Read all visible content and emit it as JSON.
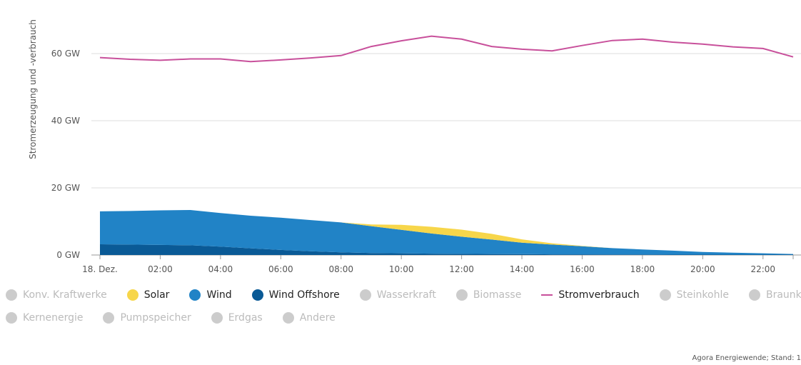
{
  "chart_data": {
    "type": "area",
    "ylabel": "Stromerzeugung und -verbrauch",
    "xlabel": "",
    "y_ticks": [
      "0 GW",
      "20 GW",
      "40 GW",
      "60 GW"
    ],
    "y_tick_values": [
      0,
      20,
      40,
      60
    ],
    "ylim": [
      0,
      70
    ],
    "x_ticks": [
      "18. Dez.",
      "02:00",
      "04:00",
      "06:00",
      "08:00",
      "10:00",
      "12:00",
      "14:00",
      "16:00",
      "18:00",
      "20:00",
      "22:00"
    ],
    "x_tick_hours": [
      0,
      2,
      4,
      6,
      8,
      10,
      12,
      14,
      16,
      18,
      20,
      22
    ],
    "x_hours": [
      0,
      1,
      2,
      3,
      4,
      5,
      6,
      7,
      8,
      9,
      10,
      11,
      12,
      13,
      14,
      15,
      16,
      17,
      18,
      19,
      20,
      21,
      22,
      23
    ],
    "xlim": [
      0,
      23
    ],
    "grid": true,
    "stack_order": [
      "Wind Offshore",
      "Wind",
      "Solar"
    ],
    "series": [
      {
        "name": "Wind Offshore",
        "type": "area",
        "color": "#0a5a96",
        "values": [
          3.2,
          3.1,
          3.0,
          2.9,
          2.5,
          2.0,
          1.5,
          1.1,
          0.8,
          0.6,
          0.5,
          0.4,
          0.35,
          0.3,
          0.25,
          0.2,
          0.2,
          0.15,
          0.15,
          0.1,
          0.1,
          0.1,
          0.1,
          0.1
        ]
      },
      {
        "name": "Wind",
        "type": "area",
        "color": "#2183c6",
        "values": [
          9.8,
          10.0,
          10.3,
          10.5,
          10.0,
          9.7,
          9.6,
          9.3,
          8.9,
          8.0,
          7.0,
          6.0,
          5.1,
          4.3,
          3.4,
          2.9,
          2.4,
          1.9,
          1.5,
          1.2,
          0.8,
          0.6,
          0.4,
          0.2
        ]
      },
      {
        "name": "Solar",
        "type": "area",
        "color": "#f7d64a",
        "values": [
          0,
          0,
          0,
          0,
          0,
          0,
          0,
          0,
          0,
          0.5,
          1.5,
          2.0,
          2.1,
          1.7,
          1.0,
          0.4,
          0.1,
          0,
          0,
          0,
          0,
          0,
          0,
          0
        ]
      },
      {
        "name": "Stromverbrauch",
        "type": "line",
        "color": "#c8509b",
        "values": [
          58.8,
          58.3,
          58.0,
          58.4,
          58.4,
          57.6,
          58.1,
          58.7,
          59.4,
          62.1,
          63.8,
          65.2,
          64.3,
          62.1,
          61.3,
          60.8,
          62.4,
          63.9,
          64.3,
          63.4,
          62.8,
          62.0,
          61.5,
          59.0
        ]
      }
    ],
    "legend_placement": "bottom",
    "legend_row1": [
      {
        "label": "Konv. Kraftwerke",
        "color": "#cccccc",
        "active": false,
        "kind": "dot"
      },
      {
        "label": "Solar",
        "color": "#f7d64a",
        "active": true,
        "kind": "dot"
      },
      {
        "label": "Wind",
        "color": "#2183c6",
        "active": true,
        "kind": "dot"
      },
      {
        "label": "Wind Offshore",
        "color": "#0a5a96",
        "active": true,
        "kind": "dot"
      },
      {
        "label": "Wasserkraft",
        "color": "#cccccc",
        "active": false,
        "kind": "dot"
      },
      {
        "label": "Biomasse",
        "color": "#cccccc",
        "active": false,
        "kind": "dot"
      },
      {
        "label": "Stromverbrauch",
        "color": "#c8509b",
        "active": true,
        "kind": "line"
      },
      {
        "label": "Steinkohle",
        "color": "#cccccc",
        "active": false,
        "kind": "dot"
      },
      {
        "label": "Braunkohle",
        "color": "#cccccc",
        "active": false,
        "kind": "dot"
      }
    ],
    "legend_row2": [
      {
        "label": "Kernenergie",
        "color": "#cccccc",
        "active": false,
        "kind": "dot"
      },
      {
        "label": "Pumpspeicher",
        "color": "#cccccc",
        "active": false,
        "kind": "dot"
      },
      {
        "label": "Erdgas",
        "color": "#cccccc",
        "active": false,
        "kind": "dot"
      },
      {
        "label": "Andere",
        "color": "#cccccc",
        "active": false,
        "kind": "dot"
      }
    ]
  },
  "credit": "Agora Energiewende; Stand: 1"
}
